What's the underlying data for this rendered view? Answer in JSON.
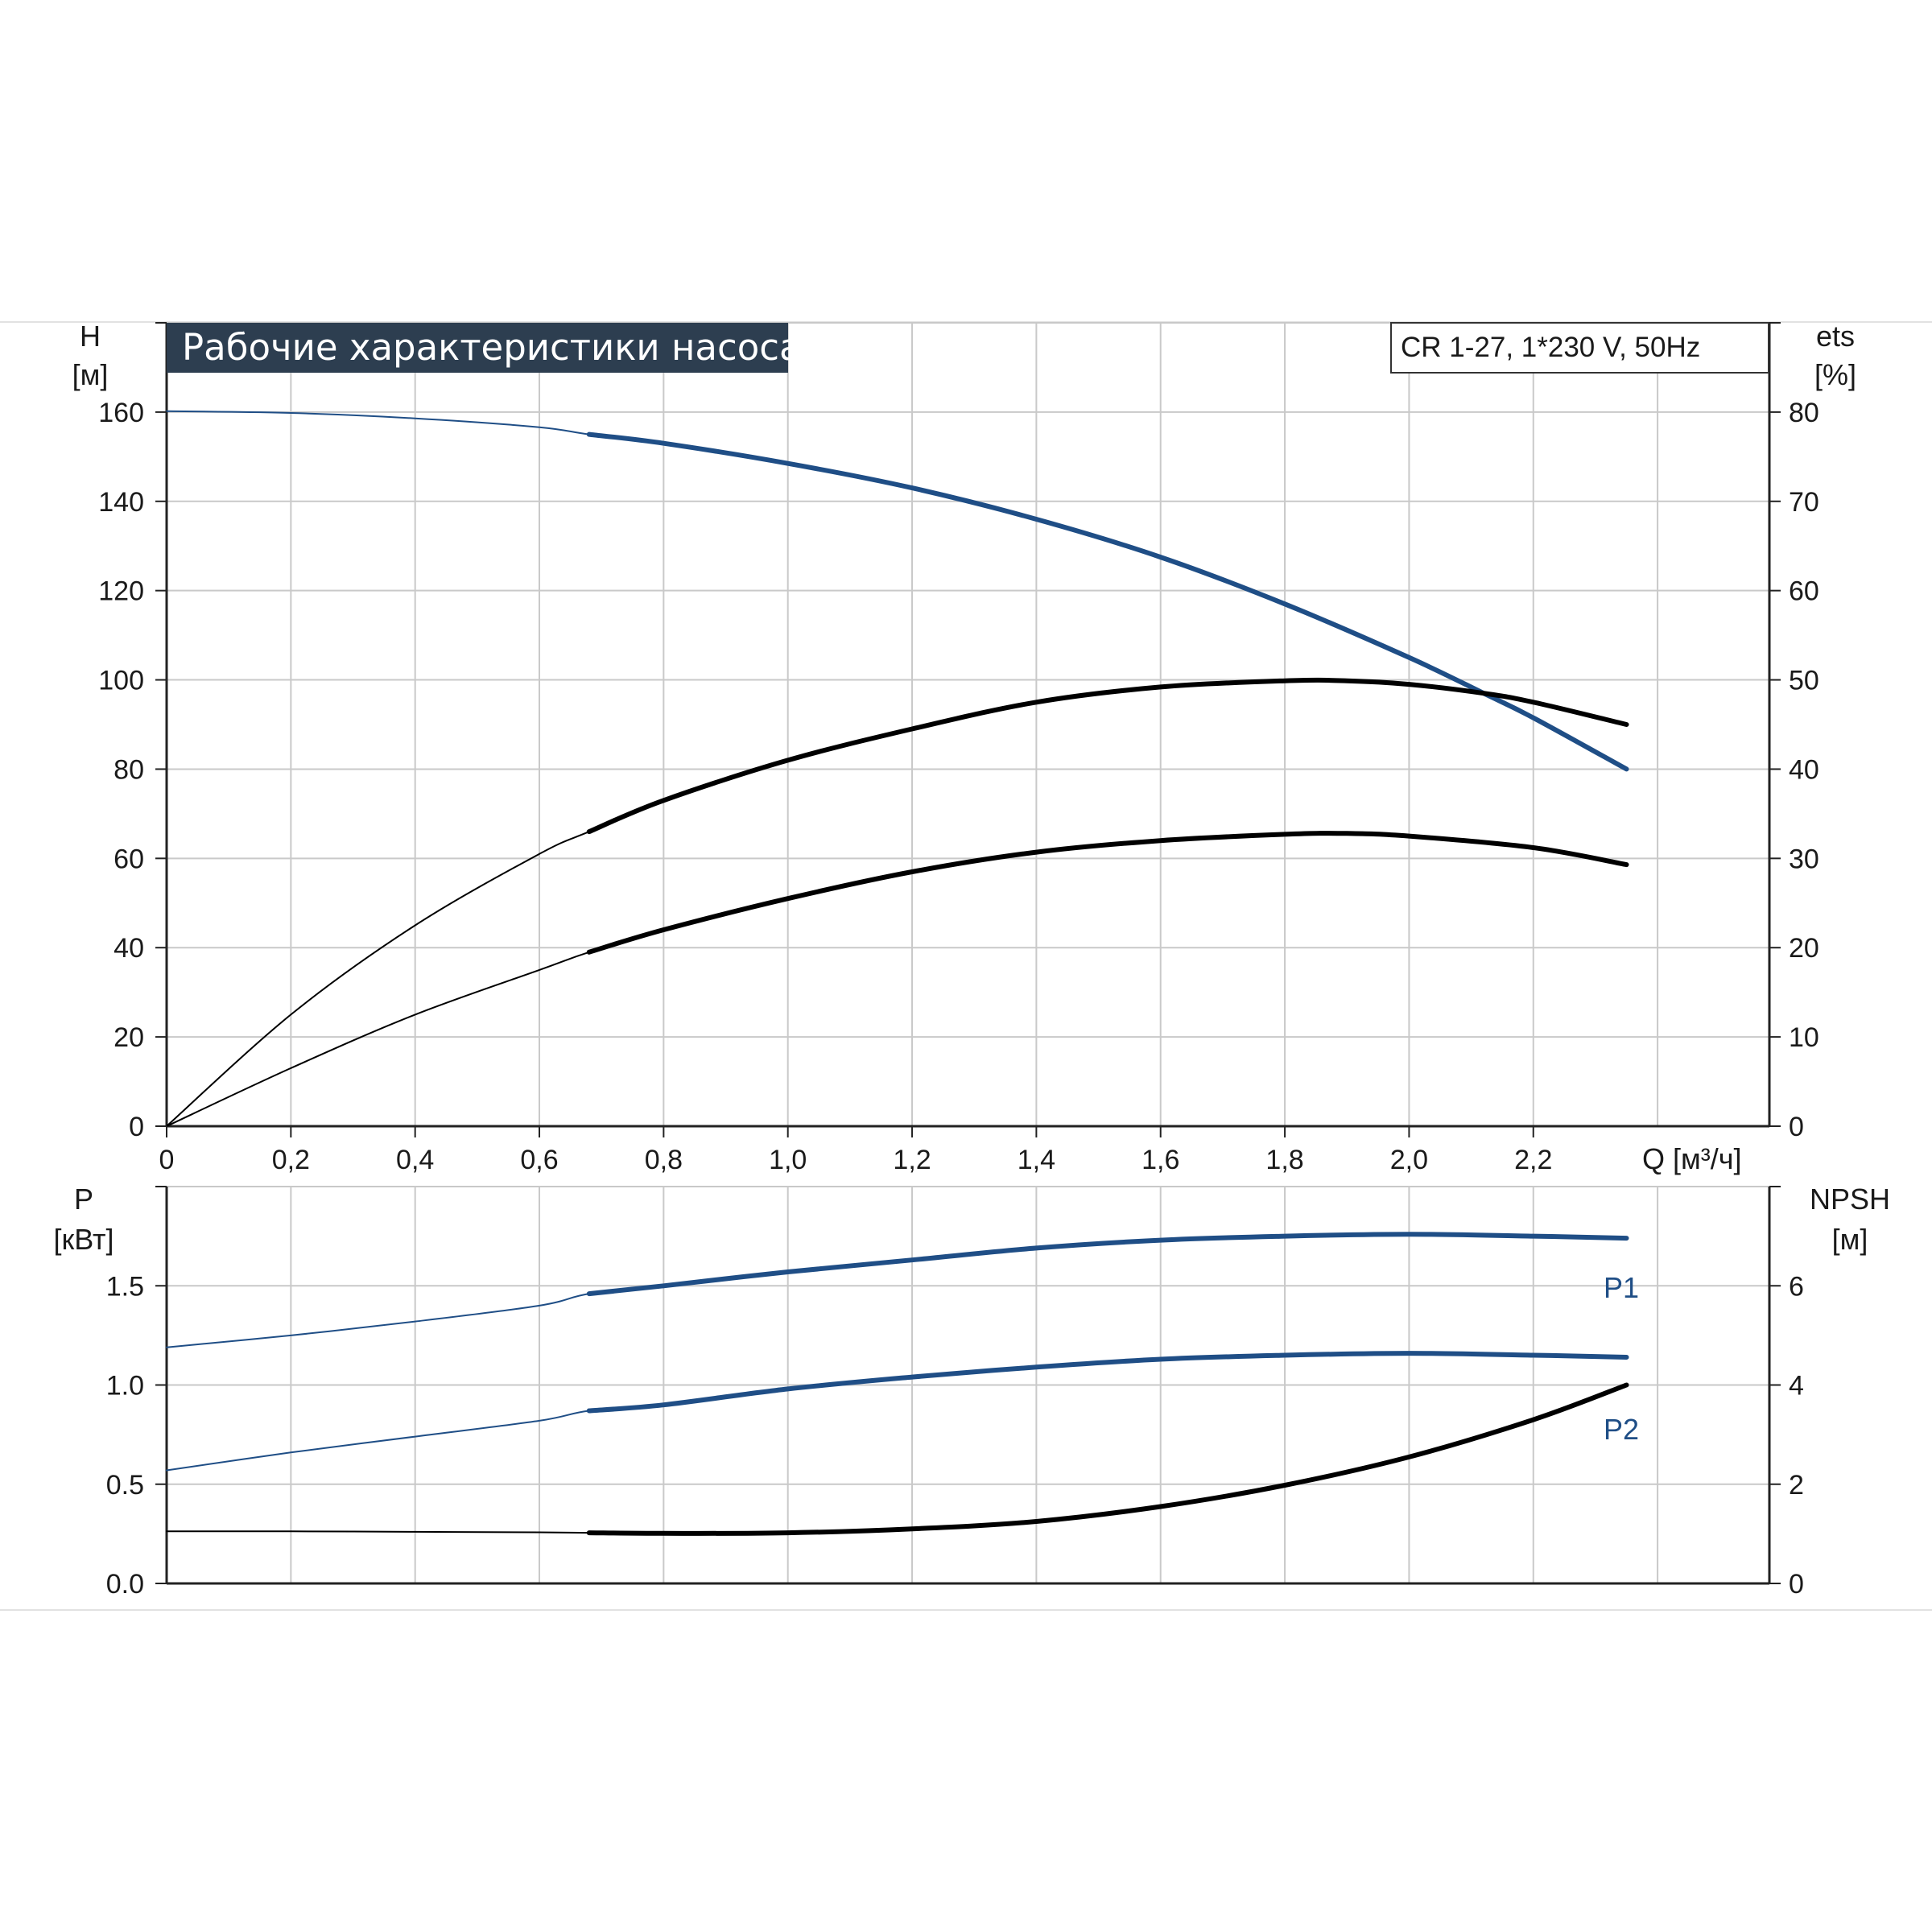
{
  "chart_data": [
    {
      "type": "line",
      "title": "Рабочие характеристики насоса",
      "model_label": "CR 1-27, 1*230 V, 50Hz",
      "xlabel": "Q [м³/ч]",
      "xlim": [
        0,
        2.58
      ],
      "xticks": [
        0,
        0.2,
        0.4,
        0.6,
        0.8,
        1.0,
        1.2,
        1.4,
        1.6,
        1.8,
        2.0,
        2.2
      ],
      "xtick_labels": [
        "0",
        "0,2",
        "0,4",
        "0,6",
        "0,8",
        "1,0",
        "1,2",
        "1,4",
        "1,6",
        "1,8",
        "2,0",
        "2,2"
      ],
      "y_left": {
        "label_top": "H",
        "label_unit": "[м]",
        "ylim": [
          0,
          180
        ],
        "ticks": [
          0,
          20,
          40,
          60,
          80,
          100,
          120,
          140,
          160
        ],
        "tick_labels": [
          "0",
          "20",
          "40",
          "60",
          "80",
          "100",
          "120",
          "140",
          "160"
        ]
      },
      "y_right": {
        "label_top": "ets",
        "label_unit": "[%]",
        "ylim": [
          0,
          90
        ],
        "ticks": [
          0,
          10,
          20,
          30,
          40,
          50,
          60,
          70,
          80
        ],
        "tick_labels": [
          "0",
          "10",
          "20",
          "30",
          "40",
          "50",
          "60",
          "70",
          "80"
        ]
      },
      "grid": true,
      "series": [
        {
          "axis": "left",
          "color": "#1f4e86",
          "x": [
            0,
            0.2,
            0.4,
            0.6,
            0.68,
            0.8,
            1.0,
            1.2,
            1.4,
            1.6,
            1.8,
            2.0,
            2.12,
            2.2,
            2.35
          ],
          "y": [
            160.2,
            159.8,
            158.6,
            156.6,
            155.0,
            153.0,
            148.5,
            143.0,
            136.0,
            127.5,
            117.0,
            105.0,
            97.0,
            91.5,
            80.0
          ]
        },
        {
          "axis": "right",
          "color": "#000000",
          "x": [
            0,
            0.2,
            0.4,
            0.6,
            0.68,
            0.8,
            1.0,
            1.2,
            1.4,
            1.6,
            1.8,
            1.9,
            2.0,
            2.12,
            2.2,
            2.35
          ],
          "y": [
            0,
            12.5,
            22.5,
            30.5,
            33.0,
            36.5,
            41.0,
            44.5,
            47.5,
            49.2,
            49.9,
            49.9,
            49.5,
            48.5,
            47.5,
            45.0
          ]
        },
        {
          "axis": "right",
          "color": "#000000",
          "x": [
            0,
            0.2,
            0.4,
            0.6,
            0.68,
            0.8,
            1.0,
            1.2,
            1.4,
            1.6,
            1.8,
            1.9,
            2.0,
            2.2,
            2.35
          ],
          "y": [
            0,
            6.5,
            12.5,
            17.5,
            19.5,
            22.0,
            25.5,
            28.5,
            30.7,
            32.0,
            32.7,
            32.8,
            32.5,
            31.2,
            29.3
          ]
        }
      ]
    },
    {
      "type": "line",
      "xlim": [
        0,
        2.58
      ],
      "y_left": {
        "label_top": "P",
        "label_unit": "[кВт]",
        "ylim": [
          0,
          2.0
        ],
        "ticks": [
          0.0,
          0.5,
          1.0,
          1.5
        ],
        "tick_labels": [
          "0.0",
          "0.5",
          "1.0",
          "1.5"
        ]
      },
      "y_right": {
        "label_top": "NPSH",
        "label_unit": "[м]",
        "ylim": [
          0,
          8
        ],
        "ticks": [
          0,
          2,
          4,
          6
        ],
        "tick_labels": [
          "0",
          "2",
          "4",
          "6"
        ]
      },
      "grid": true,
      "series": [
        {
          "name": "P1",
          "axis": "left",
          "color": "#1f4e86",
          "x": [
            0,
            0.2,
            0.4,
            0.6,
            0.68,
            0.8,
            1.0,
            1.2,
            1.4,
            1.6,
            1.8,
            2.0,
            2.2,
            2.35
          ],
          "y": [
            1.19,
            1.25,
            1.32,
            1.4,
            1.46,
            1.5,
            1.57,
            1.63,
            1.69,
            1.73,
            1.75,
            1.76,
            1.75,
            1.74
          ]
        },
        {
          "name": "P2",
          "axis": "left",
          "color": "#1f4e86",
          "x": [
            0,
            0.2,
            0.4,
            0.6,
            0.68,
            0.8,
            1.0,
            1.2,
            1.4,
            1.6,
            1.8,
            2.0,
            2.2,
            2.35
          ],
          "y": [
            0.57,
            0.66,
            0.74,
            0.82,
            0.87,
            0.9,
            0.98,
            1.04,
            1.09,
            1.13,
            1.15,
            1.16,
            1.15,
            1.14
          ]
        },
        {
          "axis": "right",
          "color": "#000000",
          "x": [
            0,
            0.2,
            0.4,
            0.6,
            0.68,
            0.8,
            1.0,
            1.2,
            1.4,
            1.6,
            1.8,
            2.0,
            2.2,
            2.35
          ],
          "y": [
            1.05,
            1.05,
            1.04,
            1.03,
            1.02,
            1.01,
            1.02,
            1.1,
            1.25,
            1.55,
            1.98,
            2.55,
            3.3,
            4.0
          ]
        }
      ]
    }
  ]
}
